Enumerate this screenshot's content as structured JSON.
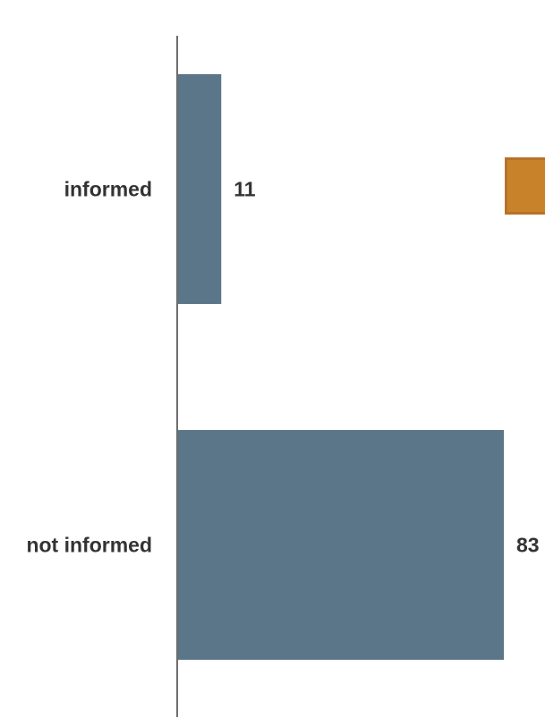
{
  "chart_data": {
    "type": "bar",
    "orientation": "horizontal",
    "categories": [
      "informed",
      "not informed"
    ],
    "values": [
      11,
      83
    ],
    "xlim": [
      0,
      83
    ],
    "grid": false,
    "legend": "none",
    "colors": {
      "bar": "#5b7589",
      "axis": "#6e6e6e",
      "marker": "#c8832a",
      "marker_border": "#b8712a"
    }
  }
}
